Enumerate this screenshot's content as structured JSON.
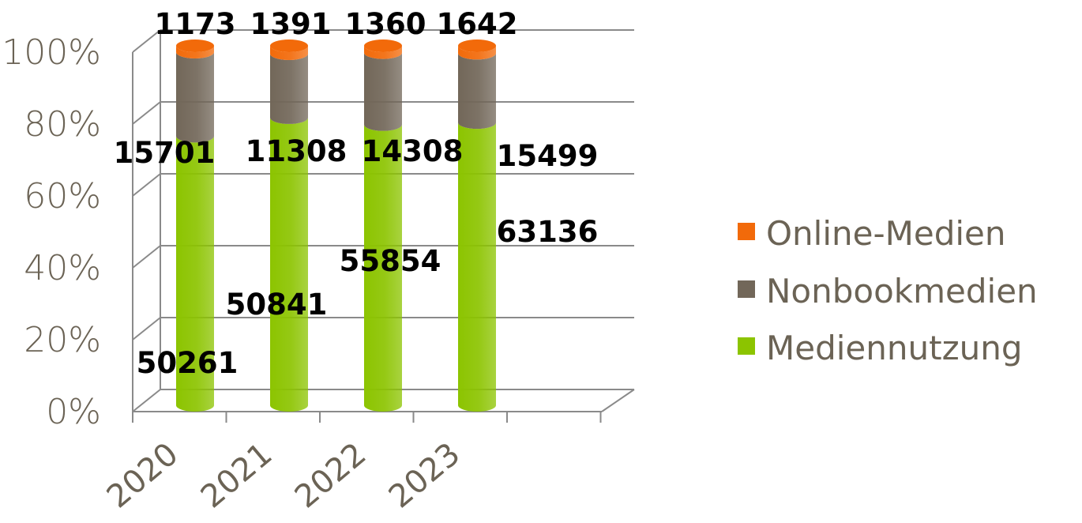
{
  "chart_data": {
    "type": "bar",
    "stacked": "percent",
    "categories": [
      "2020",
      "2021",
      "2022",
      "2023"
    ],
    "series": [
      {
        "name": "Mediennutzung",
        "values": [
          50261,
          50841,
          55854,
          63136
        ],
        "color": "#8cc400"
      },
      {
        "name": "Nonbookmedien",
        "values": [
          15701,
          11308,
          14308,
          15499
        ],
        "color": "#726759"
      },
      {
        "name": "Online-Medien",
        "values": [
          1173,
          1391,
          1360,
          1642
        ],
        "color": "#f26a0a"
      }
    ],
    "ylim": [
      0,
      100
    ],
    "yticks": [
      "0%",
      "20%",
      "40%",
      "60%",
      "80%",
      "100%"
    ],
    "grid": true,
    "legend": "right",
    "legend_order": [
      "Online-Medien",
      "Nonbookmedien",
      "Mediennutzung"
    ]
  }
}
